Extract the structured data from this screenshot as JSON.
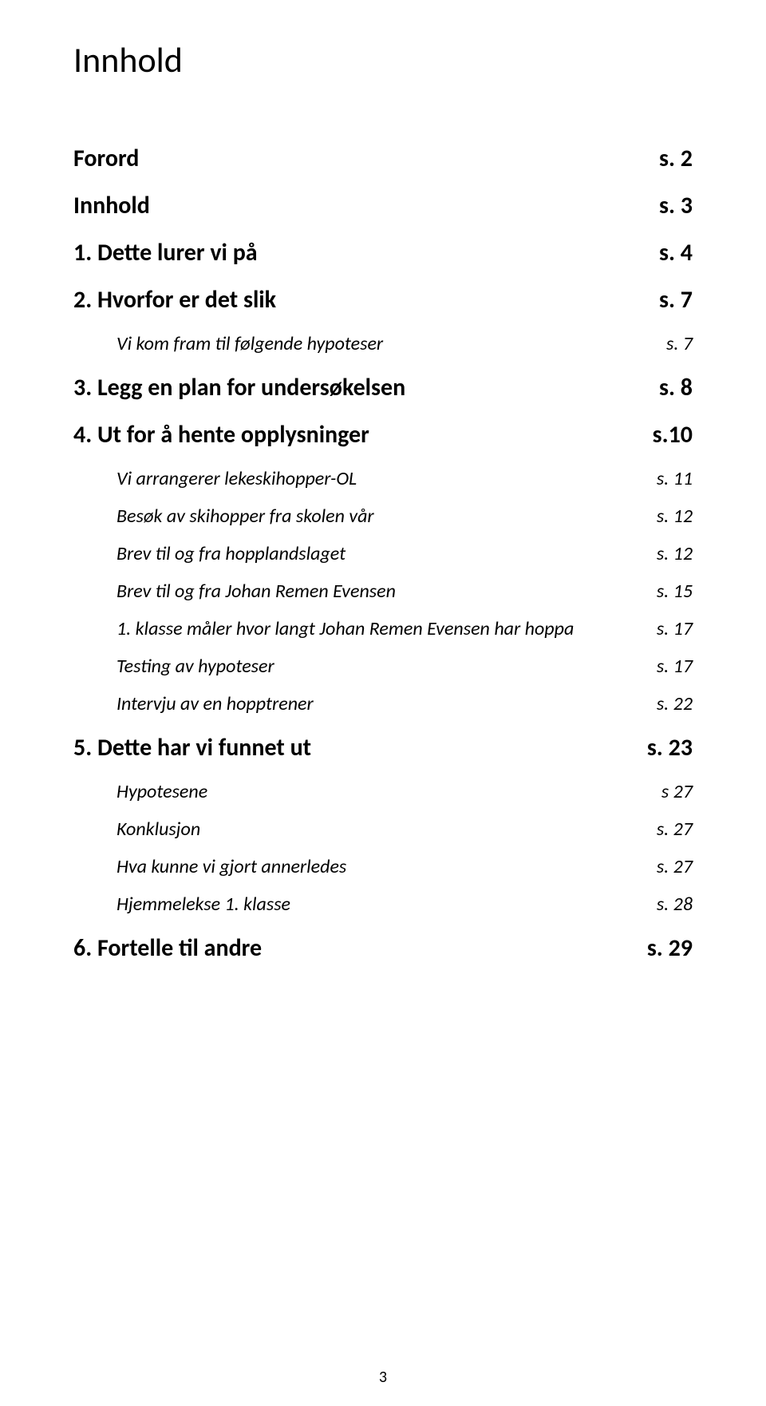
{
  "title": "Innhold",
  "rows": [
    {
      "level": 0,
      "left": "Forord",
      "right": "s. 2"
    },
    {
      "level": 0,
      "left": "Innhold",
      "right": "s. 3"
    },
    {
      "level": 0,
      "left": "1. Dette lurer vi på",
      "right": "s. 4"
    },
    {
      "level": 0,
      "left": "2. Hvorfor er det slik",
      "right": "s. 7"
    },
    {
      "level": 1,
      "left": "Vi kom fram til følgende hypoteser",
      "right": "s. 7"
    },
    {
      "level": 0,
      "left": "3. Legg en plan for undersøkelsen",
      "right": "s. 8"
    },
    {
      "level": 0,
      "left": "4. Ut for å hente opplysninger",
      "right": "s.10"
    },
    {
      "level": 1,
      "left": "Vi arrangerer lekeskihopper-OL",
      "right": "s. 11"
    },
    {
      "level": 1,
      "left": "Besøk av skihopper fra skolen vår",
      "right": "s. 12"
    },
    {
      "level": 1,
      "left": "Brev til og fra hopplandslaget",
      "right": "s. 12"
    },
    {
      "level": 1,
      "left": "Brev til og fra Johan Remen Evensen",
      "right": "s. 15"
    },
    {
      "level": 1,
      "left": "1. klasse måler hvor langt Johan Remen Evensen har hoppa",
      "right": "s. 17"
    },
    {
      "level": 1,
      "left": "Testing av hypoteser",
      "right": "s. 17"
    },
    {
      "level": 1,
      "left": "Intervju av en hopptrener",
      "right": "s. 22"
    },
    {
      "level": 0,
      "left": "5. Dette har vi funnet ut",
      "right": "s. 23"
    },
    {
      "level": 1,
      "left": "Hypotesene",
      "right": "s  27"
    },
    {
      "level": 1,
      "left": "Konklusjon",
      "right": "s. 27"
    },
    {
      "level": 1,
      "left": "Hva kunne vi gjort annerledes",
      "right": "s. 27"
    },
    {
      "level": 1,
      "left": "Hjemmelekse 1. klasse",
      "right": "s. 28"
    },
    {
      "level": 0,
      "left": "6. Fortelle til andre",
      "right": "s. 29"
    }
  ],
  "page_number": "3"
}
